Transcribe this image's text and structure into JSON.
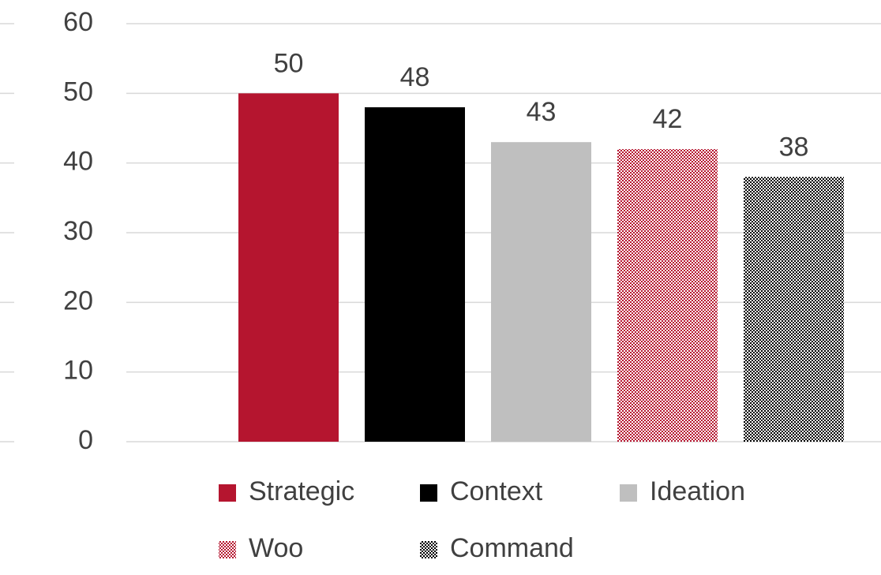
{
  "chart_data": {
    "type": "bar",
    "series": [
      {
        "name": "Strategic",
        "color": "#b5152f",
        "fill": "solid",
        "values": [
          50
        ]
      },
      {
        "name": "Context",
        "color": "#000000",
        "fill": "solid",
        "values": [
          48
        ]
      },
      {
        "name": "Ideation",
        "color": "#bfbfbf",
        "fill": "solid",
        "values": [
          43
        ]
      },
      {
        "name": "Woo",
        "color": "#b5152f",
        "fill": "checker",
        "values": [
          42
        ]
      },
      {
        "name": "Command",
        "color": "#000000",
        "fill": "checker",
        "values": [
          38
        ]
      }
    ],
    "ylim": [
      0,
      60
    ],
    "yticks": [
      0,
      10,
      20,
      30,
      40,
      50,
      60
    ],
    "grid": true,
    "legend": "bottom",
    "data_labels": true
  }
}
